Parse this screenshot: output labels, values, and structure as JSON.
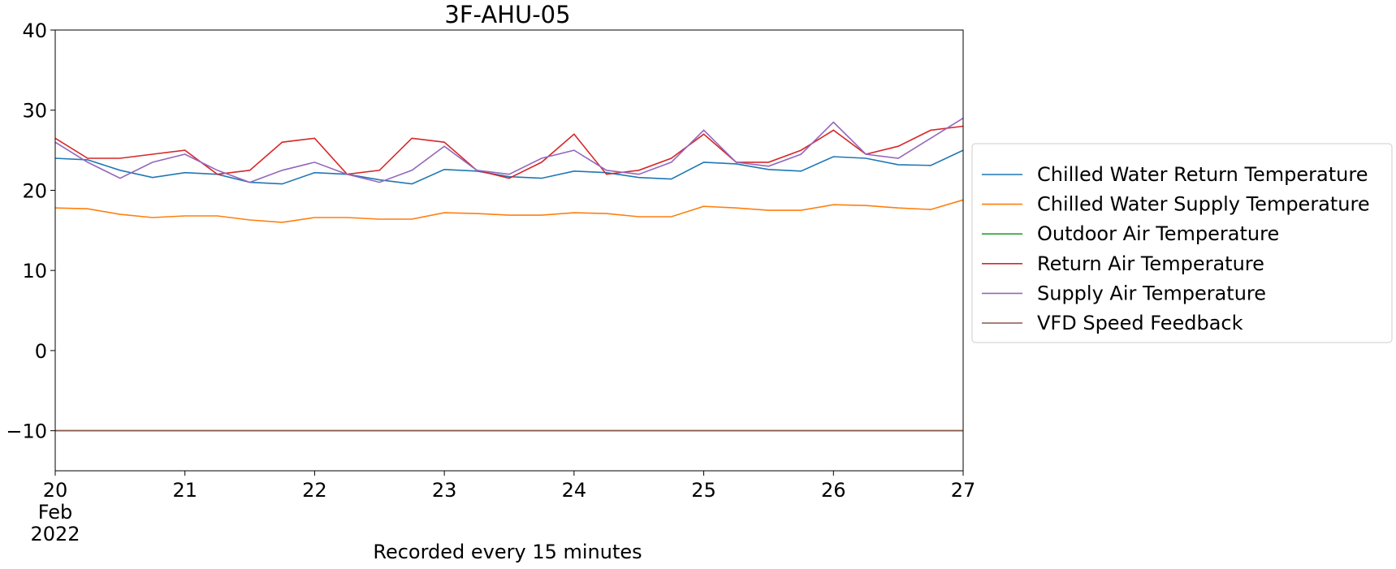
{
  "chart_data": {
    "type": "line",
    "title": "3F-AHU-05",
    "xlabel": "Recorded every 15 minutes",
    "ylabel": "",
    "x_range": [
      "2022-02-20",
      "2022-02-27"
    ],
    "ylim": [
      -15,
      40
    ],
    "grid": false,
    "legend_position": "right-center",
    "y_ticks": [
      "40",
      "30",
      "20",
      "10",
      "0",
      "−10"
    ],
    "x_ticks": [
      "20",
      "21",
      "22",
      "23",
      "24",
      "25",
      "26",
      "27"
    ],
    "x_tick_sub": {
      "month": "Feb",
      "year": "2022"
    },
    "legend": [
      "Chilled Water Return Temperature",
      "Chilled Water Supply Temperature",
      "Outdoor Air Temperature",
      "Return Air Temperature",
      "Supply Air Temperature",
      "VFD Speed Feedback"
    ],
    "x": [
      "2022-02-20 00:00",
      "2022-02-20 06:00",
      "2022-02-20 12:00",
      "2022-02-20 18:00",
      "2022-02-21 00:00",
      "2022-02-21 06:00",
      "2022-02-21 12:00",
      "2022-02-21 18:00",
      "2022-02-22 00:00",
      "2022-02-22 06:00",
      "2022-02-22 12:00",
      "2022-02-22 18:00",
      "2022-02-23 00:00",
      "2022-02-23 06:00",
      "2022-02-23 12:00",
      "2022-02-23 18:00",
      "2022-02-24 00:00",
      "2022-02-24 06:00",
      "2022-02-24 12:00",
      "2022-02-24 18:00",
      "2022-02-25 00:00",
      "2022-02-25 06:00",
      "2022-02-25 12:00",
      "2022-02-25 18:00",
      "2022-02-26 00:00",
      "2022-02-26 06:00",
      "2022-02-26 12:00",
      "2022-02-26 18:00",
      "2022-02-27 00:00"
    ],
    "series": [
      {
        "name": "Chilled Water Return Temperature",
        "color": "#1f77b4",
        "values": [
          24.0,
          23.8,
          22.5,
          21.6,
          22.2,
          22.0,
          21.0,
          20.8,
          22.2,
          22.0,
          21.3,
          20.8,
          22.6,
          22.4,
          21.7,
          21.5,
          22.4,
          22.2,
          21.6,
          21.4,
          23.5,
          23.3,
          22.6,
          22.4,
          24.2,
          24.0,
          23.2,
          23.1,
          25.0
        ]
      },
      {
        "name": "Chilled Water Supply Temperature",
        "color": "#ff7f0e",
        "values": [
          17.8,
          17.7,
          17.0,
          16.6,
          16.8,
          16.8,
          16.3,
          16.0,
          16.6,
          16.6,
          16.4,
          16.4,
          17.2,
          17.1,
          16.9,
          16.9,
          17.2,
          17.1,
          16.7,
          16.7,
          18.0,
          17.8,
          17.5,
          17.5,
          18.2,
          18.1,
          17.8,
          17.6,
          18.8
        ]
      },
      {
        "name": "Outdoor Air Temperature",
        "color": "#2ca02c",
        "values": [
          -10,
          -10,
          -10,
          -10,
          -10,
          -10,
          -10,
          -10,
          -10,
          -10,
          -10,
          -10,
          -10,
          -10,
          -10,
          -10,
          -10,
          -10,
          -10,
          -10,
          -10,
          -10,
          -10,
          -10,
          -10,
          -10,
          -10,
          -10,
          -10
        ]
      },
      {
        "name": "Return Air Temperature",
        "color": "#d62728",
        "values": [
          26.5,
          24.0,
          24.0,
          24.5,
          25.0,
          22.0,
          22.5,
          26.0,
          26.5,
          22.0,
          22.5,
          26.5,
          26.0,
          22.5,
          21.5,
          23.5,
          27.0,
          22.0,
          22.5,
          24.0,
          27.0,
          23.5,
          23.5,
          25.0,
          27.5,
          24.5,
          25.5,
          27.5,
          28.0
        ]
      },
      {
        "name": "Supply Air Temperature",
        "color": "#9467bd",
        "values": [
          26.0,
          23.5,
          21.5,
          23.5,
          24.5,
          22.5,
          21.0,
          22.5,
          23.5,
          22.0,
          21.0,
          22.5,
          25.5,
          22.5,
          22.0,
          24.0,
          25.0,
          22.5,
          22.0,
          23.5,
          27.5,
          23.5,
          23.0,
          24.5,
          28.5,
          24.5,
          24.0,
          26.5,
          29.0
        ]
      },
      {
        "name": "VFD Speed Feedback",
        "color": "#8c564b",
        "values": [
          -10,
          -10,
          -10,
          -10,
          -10,
          -10,
          -10,
          -10,
          -10,
          -10,
          -10,
          -10,
          -10,
          -10,
          -10,
          -10,
          -10,
          -10,
          -10,
          -10,
          -10,
          -10,
          -10,
          -10,
          -10,
          -10,
          -10,
          -10,
          -10
        ]
      }
    ]
  }
}
